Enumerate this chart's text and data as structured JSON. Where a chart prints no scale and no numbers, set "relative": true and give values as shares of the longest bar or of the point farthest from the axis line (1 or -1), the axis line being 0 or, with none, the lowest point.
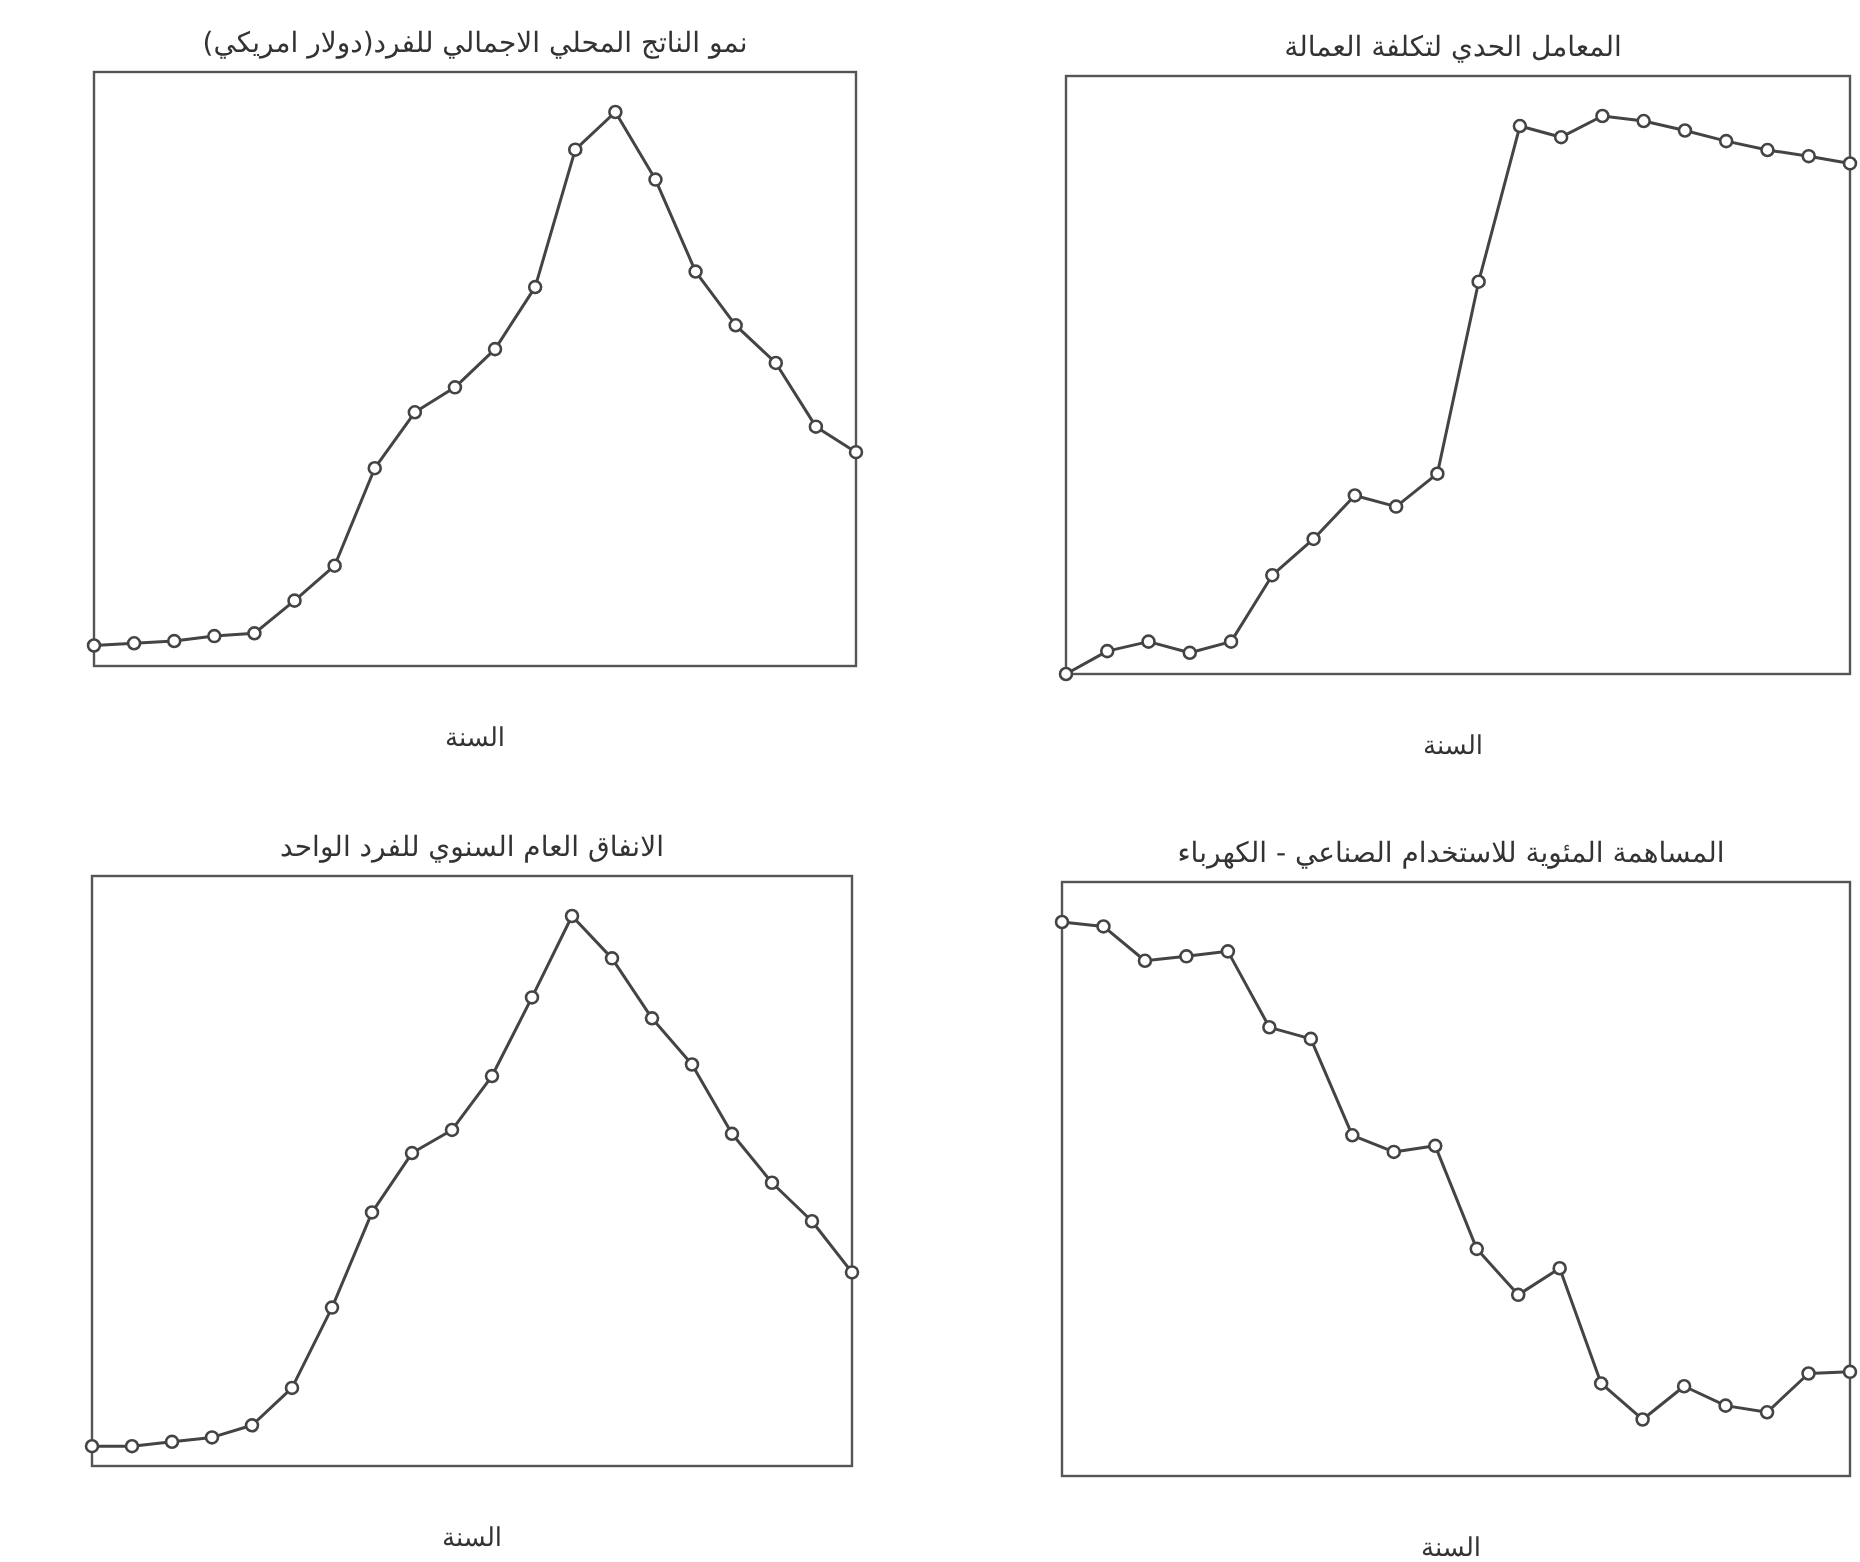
{
  "chart_data": [
    {
      "type": "line",
      "title": "نمو الناتج المحلي الاجمالي للفرد(دولار امريكي)",
      "xlabel": "السنة",
      "relative": true,
      "marker": "circle",
      "line_style": "solid",
      "categories": [
        null,
        null,
        null,
        null,
        null,
        null,
        null,
        null,
        null,
        null,
        null,
        null,
        null,
        null,
        null,
        null,
        null,
        null,
        null,
        null
      ],
      "series": [
        {
          "color": "#444444",
          "values": [
            0.037,
            0.041,
            0.045,
            0.054,
            0.059,
            0.118,
            0.181,
            0.357,
            0.458,
            0.503,
            0.572,
            0.684,
            0.932,
            1,
            0.878,
            0.712,
            0.615,
            0.547,
            0.432,
            0.386
          ]
        }
      ]
    },
    {
      "type": "line",
      "title": "المعامل الحدي لتكلفة العمالة",
      "xlabel": "السنة",
      "relative": true,
      "marker": "circle",
      "line_style": "solid",
      "categories": [
        null,
        null,
        null,
        null,
        null,
        null,
        null,
        null,
        null,
        null,
        null,
        null,
        null,
        null,
        null,
        null,
        null,
        null,
        null,
        null
      ],
      "series": [
        {
          "color": "#444444",
          "values": [
            0,
            0.041,
            0.058,
            0.038,
            0.058,
            0.177,
            0.242,
            0.32,
            0.3,
            0.359,
            0.703,
            0.982,
            0.962,
            1,
            0.991,
            0.974,
            0.955,
            0.939,
            0.928,
            0.915
          ]
        }
      ]
    },
    {
      "type": "line",
      "title": "الانفاق العام السنوي للفرد الواحد",
      "xlabel": "السنة",
      "relative": true,
      "marker": "circle",
      "line_style": "solid",
      "categories": [
        null,
        null,
        null,
        null,
        null,
        null,
        null,
        null,
        null,
        null,
        null,
        null,
        null,
        null,
        null,
        null,
        null,
        null,
        null,
        null
      ],
      "series": [
        {
          "color": "#444444",
          "values": [
            0.036,
            0.036,
            0.044,
            0.052,
            0.074,
            0.142,
            0.288,
            0.461,
            0.569,
            0.611,
            0.709,
            0.852,
            1,
            0.923,
            0.814,
            0.73,
            0.604,
            0.515,
            0.445,
            0.352
          ]
        }
      ]
    },
    {
      "type": "line",
      "title": "المساهمة المئوية للاستخدام الصناعي - الكهرباء",
      "xlabel": "السنة",
      "relative": true,
      "marker": "circle",
      "line_style": "solid",
      "categories": [
        null,
        null,
        null,
        null,
        null,
        null,
        null,
        null,
        null,
        null,
        null,
        null,
        null,
        null,
        null,
        null,
        null,
        null,
        null,
        null
      ],
      "series": [
        {
          "color": "#444444",
          "values": [
            1,
            0.992,
            0.93,
            0.938,
            0.947,
            0.81,
            0.789,
            0.615,
            0.585,
            0.596,
            0.41,
            0.327,
            0.375,
            0.167,
            0.102,
            0.162,
            0.127,
            0.115,
            0.185,
            0.188
          ]
        }
      ]
    }
  ]
}
